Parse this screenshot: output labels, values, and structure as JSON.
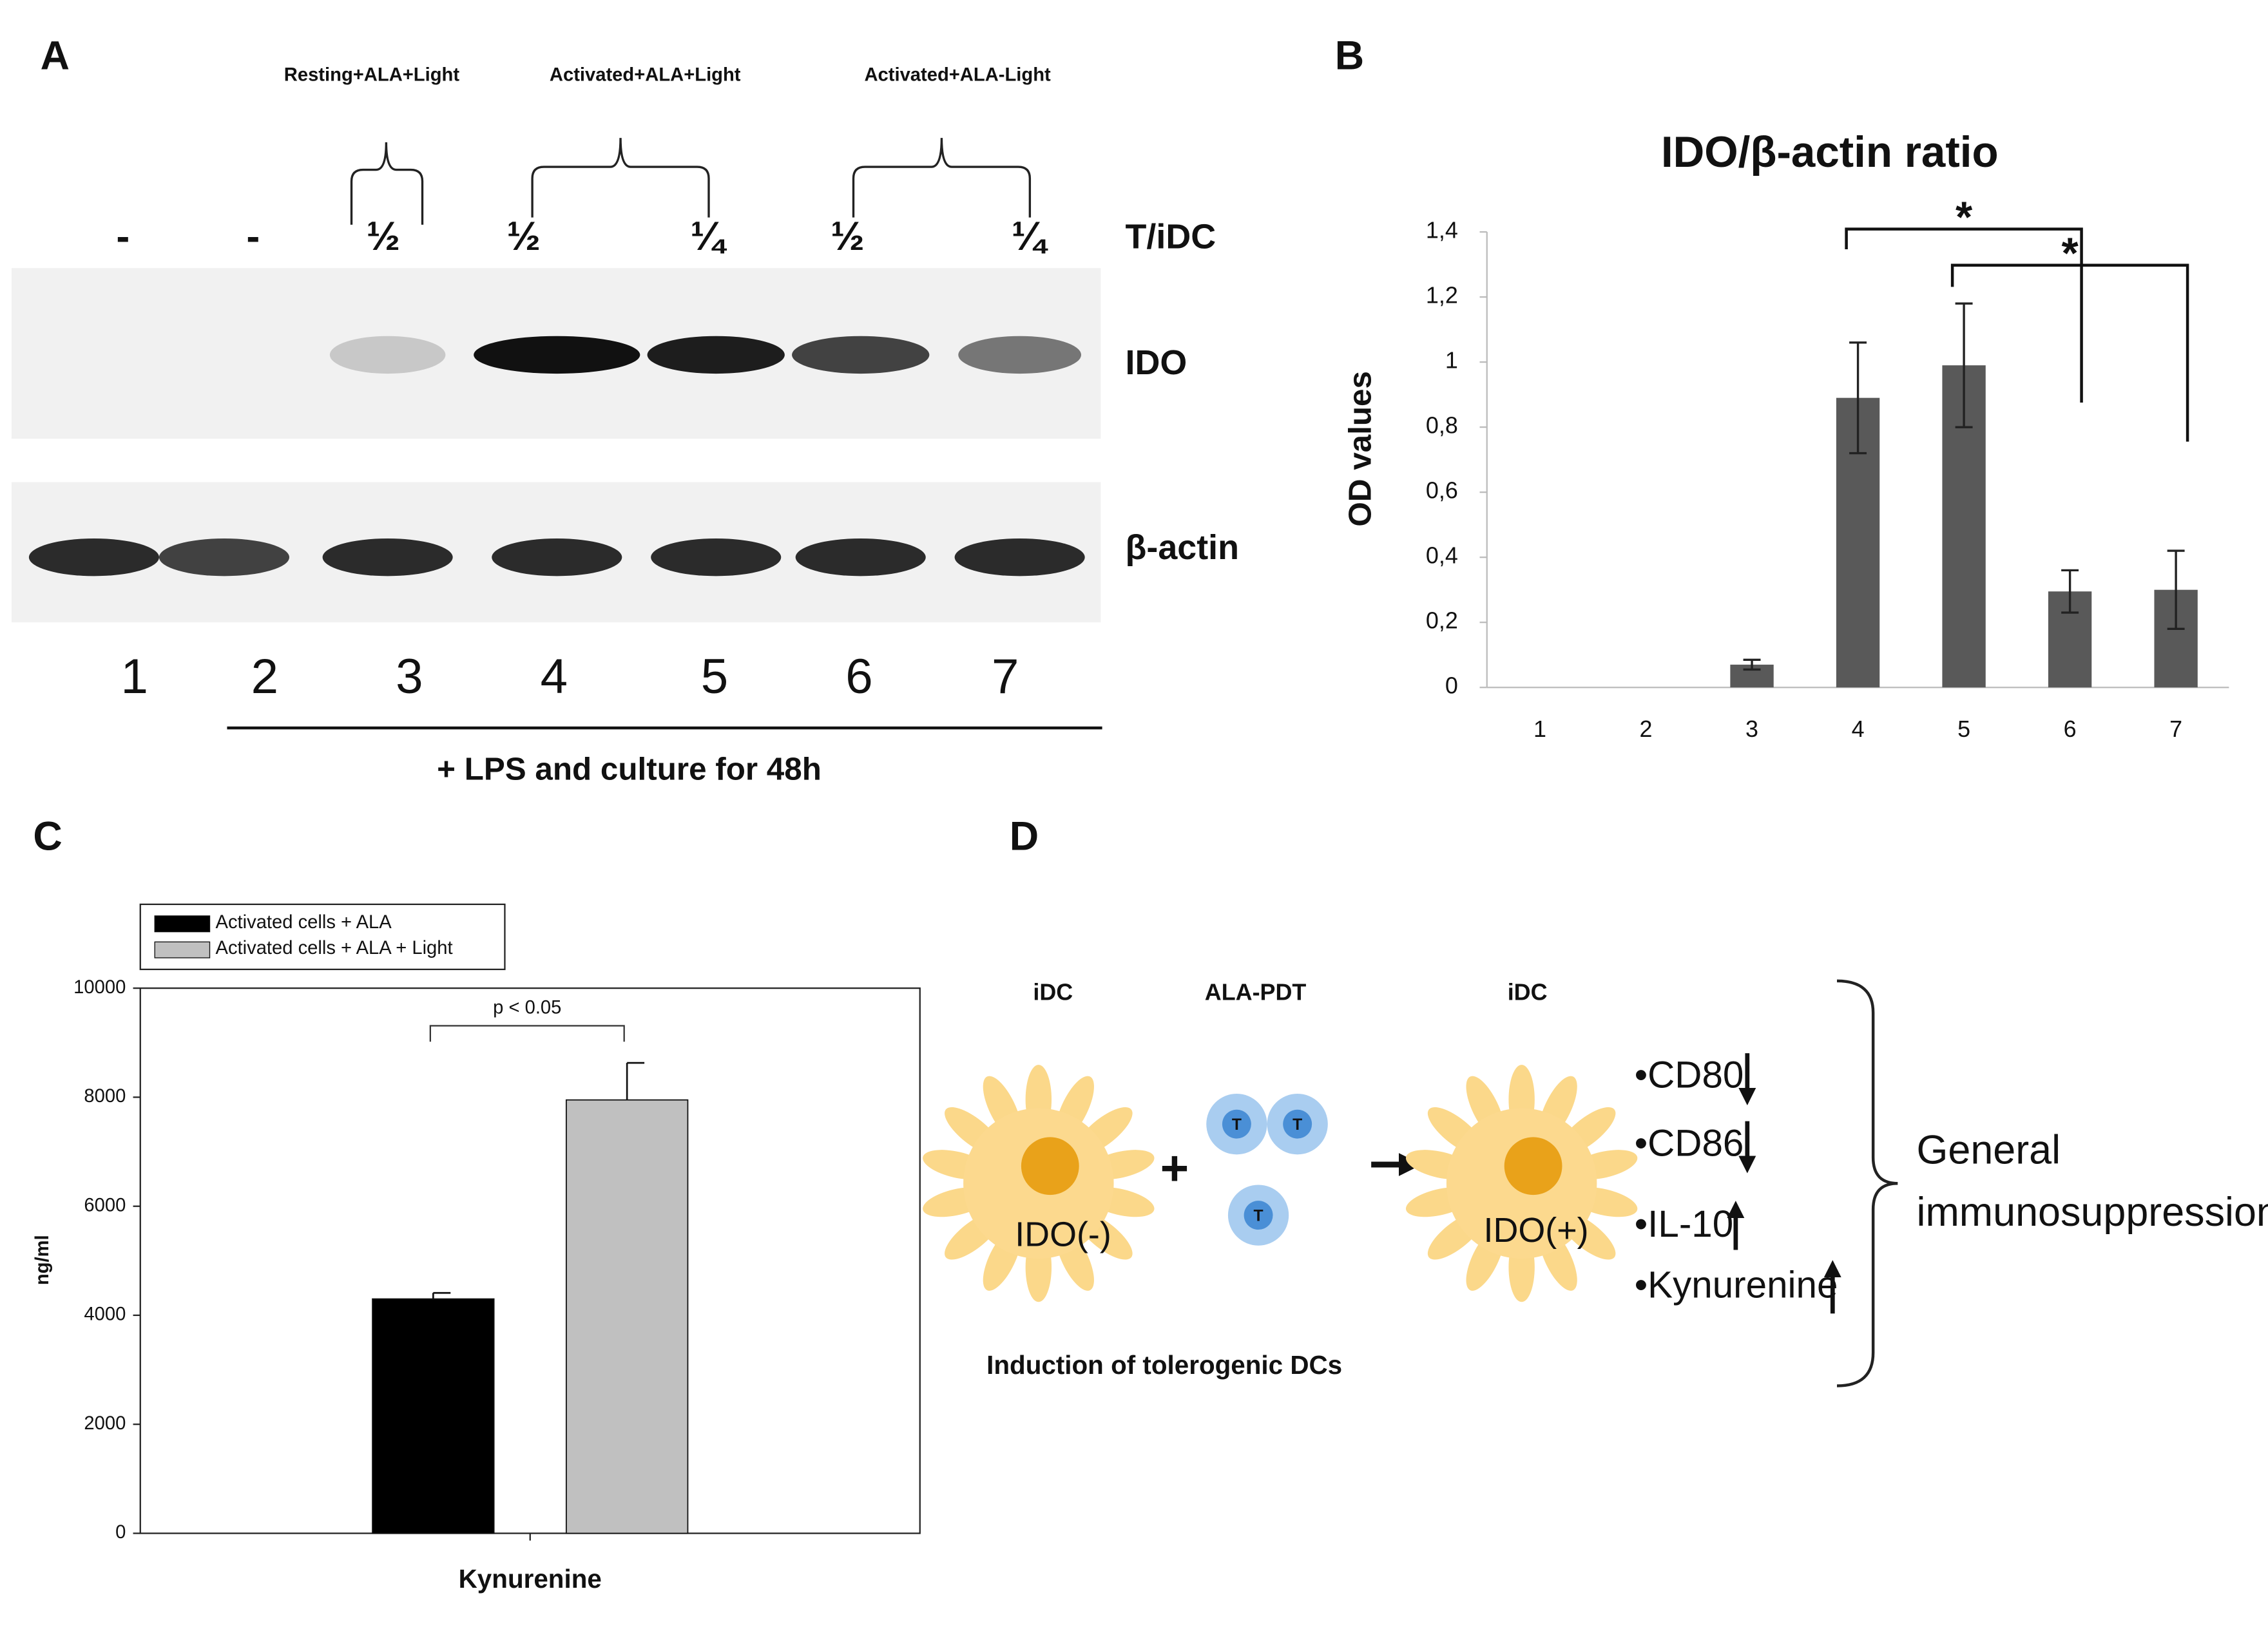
{
  "panel_labels": [
    "A",
    "B",
    "C",
    "D"
  ],
  "blot": {
    "group_labels": [
      "Resting+ALA+Light",
      "Activated+ALA+Light",
      "Activated+ALA-Light"
    ],
    "ratios": [
      "-",
      "-",
      "½",
      "½",
      "¼",
      "½",
      "¼"
    ],
    "row_header": "T/iDC",
    "rows": [
      "IDO",
      "β-actin"
    ],
    "lanes": [
      "1",
      "2",
      "3",
      "4",
      "5",
      "6",
      "7"
    ],
    "treatment": "+ LPS and culture for 48h"
  },
  "chart_data": [
    {
      "type": "bar",
      "title": "IDO/β-actin ratio",
      "ylabel": "OD values",
      "categories": [
        "1",
        "2",
        "3",
        "4",
        "5",
        "6",
        "7"
      ],
      "values": [
        0,
        0,
        0.07,
        0.89,
        0.99,
        0.295,
        0.3
      ],
      "errors": [
        null,
        null,
        0.015,
        0.17,
        0.19,
        0.065,
        0.12
      ],
      "color": "#595959",
      "ylim": [
        0,
        1.4
      ],
      "yticks": [
        0,
        {
          "value": 0.2,
          "label": "0,2"
        },
        {
          "value": 0.4,
          "label": "0,4"
        },
        {
          "value": 0.6,
          "label": "0,6"
        },
        {
          "value": 0.8,
          "label": "0,8"
        },
        1,
        {
          "value": 1.2,
          "label": "1,2"
        },
        {
          "value": 1.4,
          "label": "1,4"
        }
      ],
      "annotations": [
        "*",
        "*"
      ]
    },
    {
      "type": "grouped-bar",
      "ylabel": "ng/ml",
      "categories": [
        "Kynurenine"
      ],
      "series": [
        {
          "name": "Activated cells + ALA",
          "color": "#000000",
          "values": [
            4300
          ],
          "errors": [
            110
          ]
        },
        {
          "name": "Activated cells + ALA + Light",
          "color": "#c0c0c0",
          "values": [
            7950
          ],
          "errors": [
            680
          ]
        }
      ],
      "ylim": [
        0,
        10000
      ],
      "yticks": [
        0,
        2000,
        4000,
        6000,
        8000,
        10000
      ],
      "legend": "top-left",
      "annotations": [
        "p < 0.05"
      ]
    }
  ],
  "diagram": {
    "headers": [
      "iDC",
      "ALA-PDT",
      "iDC"
    ],
    "cells": [
      "IDO(-)",
      "IDO(+)"
    ],
    "plus": "+",
    "t_cells": [
      "T",
      "T",
      "T"
    ],
    "markers": [
      "•CD80",
      "•CD86",
      "•IL-10",
      "•Kynurenine"
    ],
    "outcome": [
      "General",
      "immunosuppression"
    ],
    "caption": "Induction of tolerogenic DCs"
  }
}
